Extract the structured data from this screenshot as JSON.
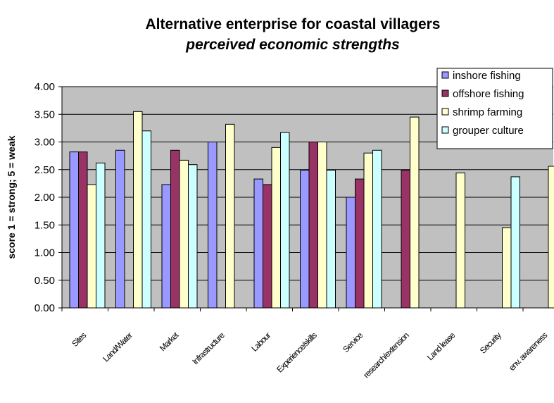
{
  "chart_data": {
    "type": "bar",
    "title": "Alternative enterprise for coastal villagers",
    "subtitle": "perceived economic strengths",
    "xlabel": "",
    "ylabel": "score 1 = strong; 5 = weak",
    "ylim": [
      0,
      4
    ],
    "yticks": [
      "0.00",
      "0.50",
      "1.00",
      "1.50",
      "2.00",
      "2.50",
      "3.00",
      "3.50",
      "4.00"
    ],
    "grid": true,
    "legend_position": "top-right",
    "categories": [
      "Sites",
      "Land/Water",
      "Market",
      "Infrastructure",
      "Labour",
      "Experience/skills",
      "Service",
      "research/extension",
      "Land lease",
      "Security",
      "env. awareness"
    ],
    "series": [
      {
        "name": "inshore fishing",
        "color": "#9999ff",
        "values": [
          2.82,
          2.85,
          2.23,
          3.0,
          2.33,
          2.49,
          2.0,
          null,
          null,
          null,
          null
        ]
      },
      {
        "name": "offshore fishing",
        "color": "#993366",
        "values": [
          2.82,
          null,
          2.85,
          null,
          2.23,
          3.0,
          2.33,
          2.49,
          null,
          null,
          null
        ]
      },
      {
        "name": "shrimp farming",
        "color": "#ffffcc",
        "values": [
          2.23,
          3.55,
          2.67,
          3.32,
          2.9,
          3.0,
          2.8,
          3.45,
          2.44,
          1.45,
          2.56
        ]
      },
      {
        "name": "grouper culture",
        "color": "#ccffff",
        "values": [
          2.62,
          3.2,
          2.59,
          null,
          3.17,
          2.49,
          2.85,
          null,
          null,
          2.37,
          null
        ]
      }
    ]
  },
  "colors": {
    "plot_background": "#c0c0c0",
    "bar_border": "#000000"
  }
}
